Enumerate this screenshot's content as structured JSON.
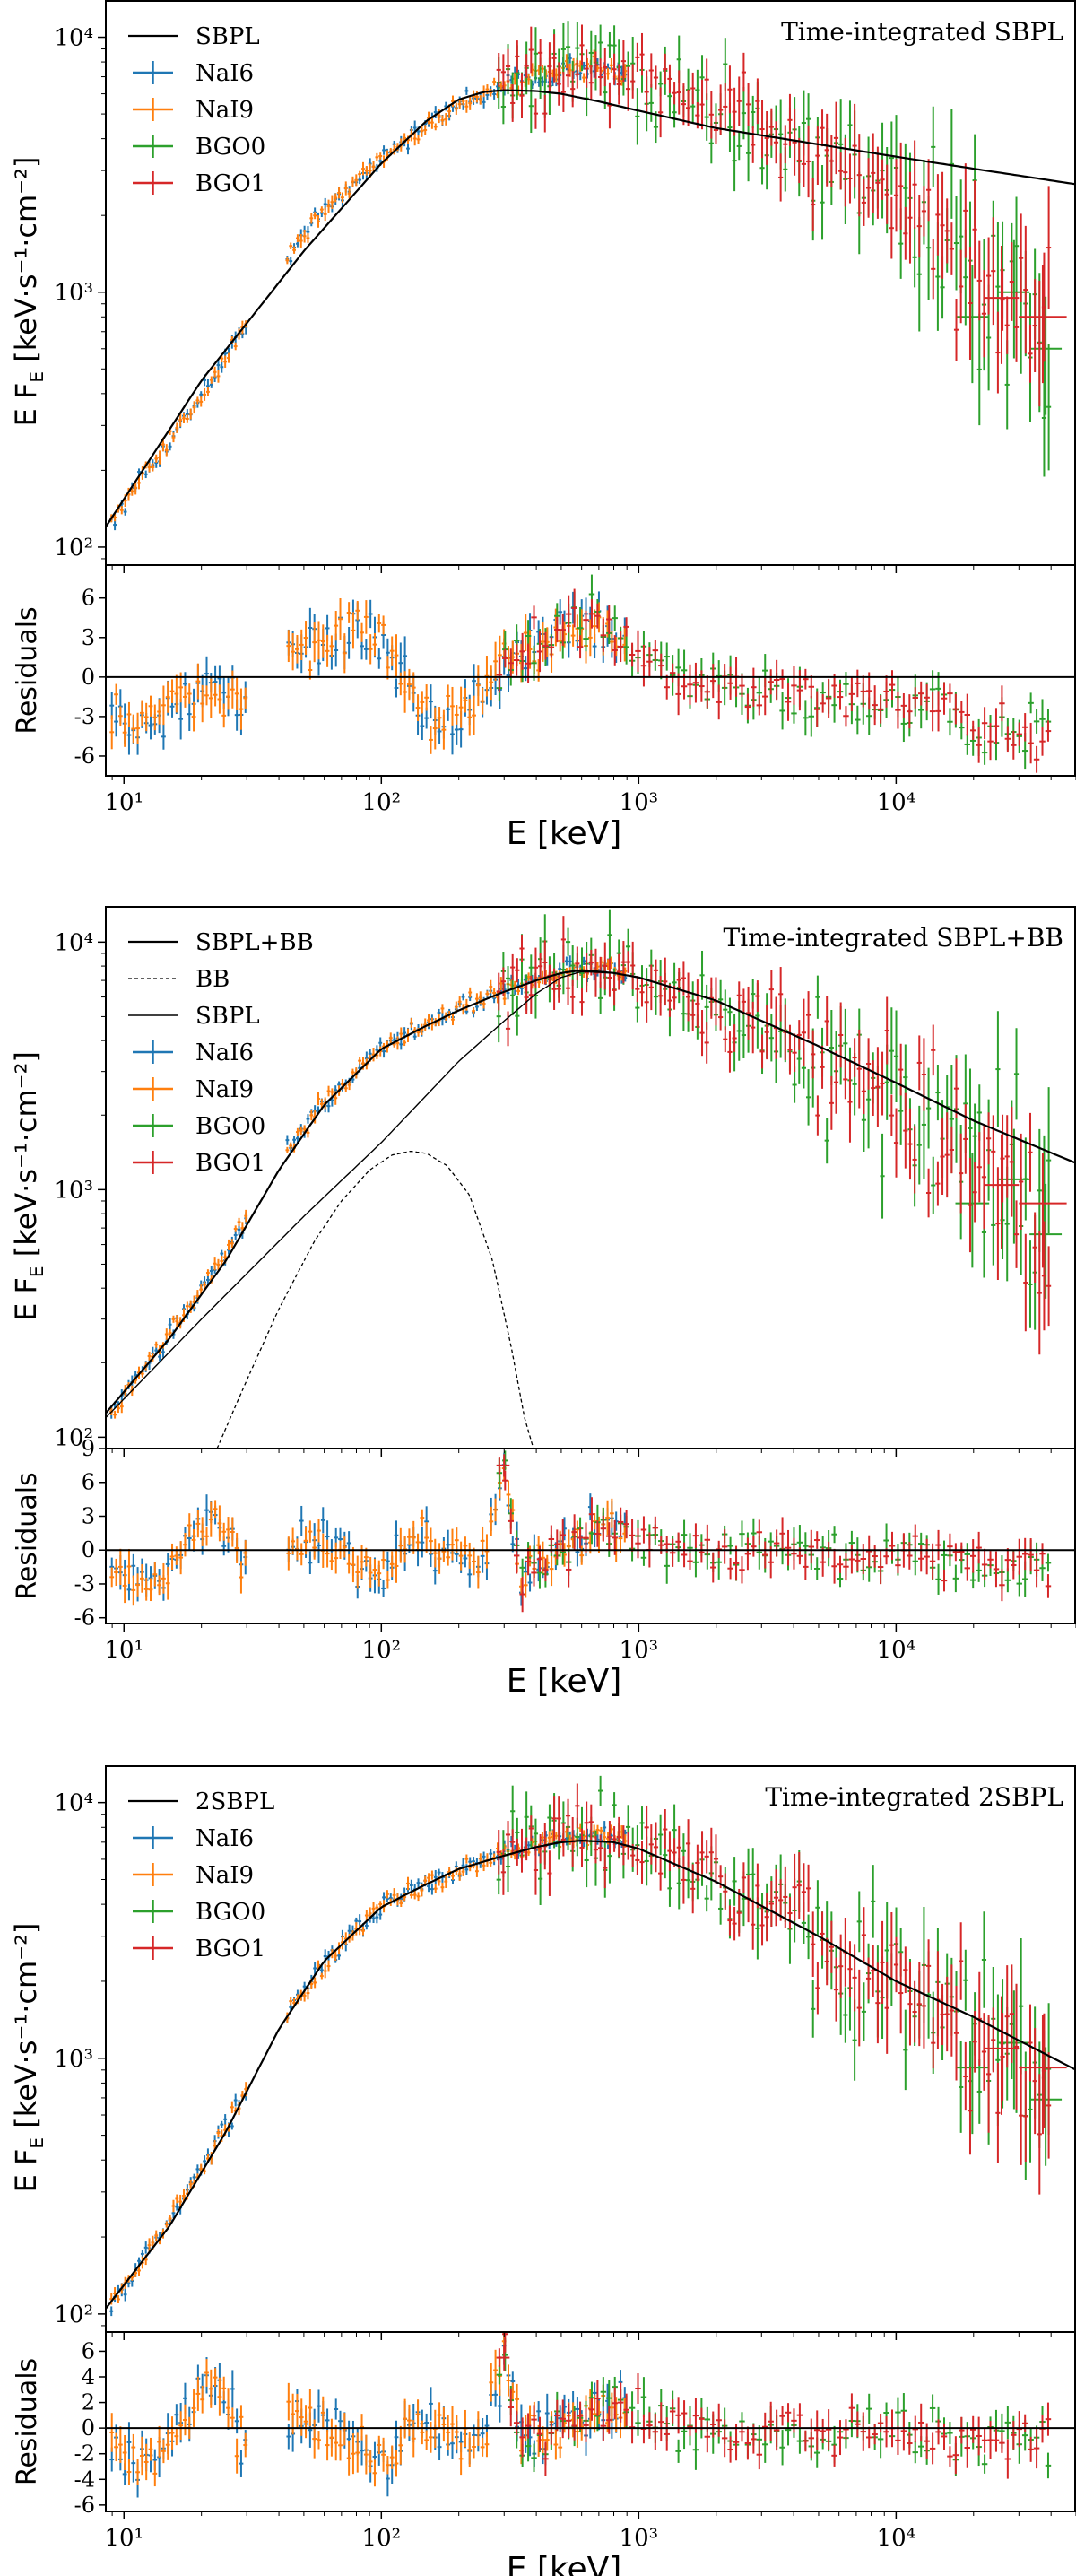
{
  "colors": {
    "NaI6": "#1f77b4",
    "NaI9": "#ff7f0e",
    "BGO0": "#2ca02c",
    "BGO1": "#d62728",
    "model": "#000000"
  },
  "chart_data": [
    {
      "type": "line",
      "title": "Time-integrated SBPL",
      "xlabel": "E [keV]",
      "ylabel_main": "E F",
      "ylabel_sub": "E",
      "ylabel_unit": "[keV·s⁻¹·cm⁻²]",
      "residual_label": "Residuals",
      "x_scale": "log",
      "y_scale": "log",
      "xlim": [
        8.5,
        50000
      ],
      "ylim": [
        85,
        14000
      ],
      "res_ylim": [
        -7.5,
        8.5
      ],
      "x_tick_labels": [
        "10¹",
        "10²",
        "10³",
        "10⁴"
      ],
      "y_tick_labels": [
        "10²",
        "10³",
        "10⁴"
      ],
      "res_tick_labels": [
        "6",
        "3",
        "0",
        "-3",
        "-6"
      ],
      "legend": [
        "SBPL",
        "NaI6",
        "NaI9",
        "BGO0",
        "BGO1"
      ],
      "legend_location": "top-left",
      "models": [
        {
          "name": "SBPL",
          "style": "solid",
          "width": 2.2,
          "x": [
            8.5,
            20,
            50,
            100,
            150,
            200,
            250,
            300,
            400,
            500,
            700,
            1000,
            2000,
            5000,
            10000,
            20000,
            50000
          ],
          "y": [
            120,
            450,
            1450,
            3200,
            4700,
            5700,
            6100,
            6200,
            6150,
            6000,
            5600,
            5150,
            4400,
            3800,
            3400,
            3050,
            2650
          ]
        }
      ],
      "data_spectrum": {
        "x": [
          9,
          15,
          25,
          40,
          60,
          100,
          150,
          200,
          300,
          400,
          500,
          700,
          900,
          1500,
          3000,
          7000,
          15000,
          25000,
          40000
        ],
        "y": [
          125,
          260,
          560,
          1250,
          2100,
          3400,
          4500,
          5500,
          6500,
          7000,
          7500,
          7600,
          7000,
          5800,
          4500,
          3000,
          1700,
          1000,
          800
        ]
      },
      "residuals": {
        "x": [
          9,
          11,
          14,
          18,
          22,
          27,
          30,
          45,
          60,
          80,
          100,
          130,
          160,
          200,
          250,
          300,
          400,
          500,
          650,
          800,
          1000,
          1500,
          2500,
          4000,
          7000,
          10000,
          15000,
          20000,
          30000,
          45000
        ],
        "y": [
          -2.5,
          -3.5,
          -3,
          -2,
          -1,
          -1.5,
          -2,
          2.2,
          3,
          3.6,
          2,
          -1,
          -3.5,
          -3,
          -1,
          0.8,
          2.5,
          3.6,
          4.5,
          3,
          1.5,
          -0.5,
          -1,
          -1.2,
          -1.8,
          -2,
          -2.5,
          -4,
          -4.5,
          -4.3
        ]
      }
    },
    {
      "type": "line",
      "title": "Time-integrated SBPL+BB",
      "xlabel": "E [keV]",
      "ylabel_main": "E F",
      "ylabel_sub": "E",
      "ylabel_unit": "[keV·s⁻¹·cm⁻²]",
      "residual_label": "Residuals",
      "x_scale": "log",
      "y_scale": "log",
      "xlim": [
        8.5,
        50000
      ],
      "ylim": [
        90,
        14000
      ],
      "res_ylim": [
        -6.5,
        9
      ],
      "x_tick_labels": [
        "10¹",
        "10²",
        "10³",
        "10⁴"
      ],
      "y_tick_labels": [
        "10²",
        "10³",
        "10⁴"
      ],
      "res_tick_labels": [
        "9",
        "6",
        "3",
        "0",
        "-3",
        "-6"
      ],
      "legend": [
        "SBPL+BB",
        "BB",
        "SBPL",
        "NaI6",
        "NaI9",
        "BGO0",
        "BGO1"
      ],
      "legend_location": "top-left",
      "models": [
        {
          "name": "SBPL+BB",
          "style": "solid",
          "width": 2.2,
          "x": [
            8.5,
            15,
            25,
            40,
            60,
            100,
            150,
            200,
            300,
            400,
            500,
            600,
            800,
            1000,
            2000,
            5000,
            10000,
            20000,
            50000
          ],
          "y": [
            125,
            250,
            520,
            1200,
            2200,
            3700,
            4600,
            5300,
            6300,
            7000,
            7500,
            7700,
            7500,
            7200,
            5800,
            3800,
            2700,
            1900,
            1280
          ]
        },
        {
          "name": "BB",
          "style": "dashed",
          "width": 1.3,
          "x": [
            23,
            30,
            40,
            55,
            70,
            90,
            110,
            130,
            150,
            180,
            220,
            270,
            320,
            360,
            390
          ],
          "y": [
            90,
            170,
            330,
            620,
            900,
            1200,
            1380,
            1430,
            1400,
            1250,
            950,
            520,
            230,
            120,
            90
          ]
        },
        {
          "name": "SBPL",
          "style": "solid",
          "width": 1.4,
          "x": [
            8.5,
            20,
            50,
            100,
            200,
            300,
            400,
            500,
            600,
            800,
            1000
          ],
          "y": [
            120,
            300,
            780,
            1550,
            3300,
            4800,
            6200,
            7200,
            7600,
            7500,
            7200
          ]
        }
      ],
      "data_spectrum": {
        "x": [
          9,
          15,
          25,
          40,
          60,
          100,
          150,
          200,
          300,
          400,
          500,
          700,
          900,
          1500,
          3000,
          7000,
          15000,
          25000,
          40000
        ],
        "y": [
          125,
          260,
          560,
          1300,
          2300,
          3700,
          4700,
          5400,
          6400,
          7100,
          7600,
          7900,
          7300,
          6000,
          4300,
          2900,
          1700,
          1000,
          800
        ]
      },
      "residuals": {
        "x": [
          9,
          11,
          14,
          18,
          21,
          25,
          28,
          45,
          60,
          80,
          100,
          130,
          160,
          200,
          250,
          300,
          350,
          400,
          500,
          650,
          800,
          1000,
          1500,
          2500,
          4000,
          7000,
          10000,
          15000,
          20000,
          30000,
          45000
        ],
        "y": [
          -2,
          -3,
          -2.5,
          1,
          3.5,
          2,
          -1,
          0.5,
          1,
          -1.5,
          -2,
          0.8,
          0.5,
          -0.5,
          -1,
          7.5,
          -3.5,
          -1,
          0,
          1.5,
          2,
          1,
          0.3,
          -0.3,
          0,
          -0.5,
          0,
          -0.5,
          -1.5,
          -1,
          -1.2
        ]
      }
    },
    {
      "type": "line",
      "title": "Time-integrated 2SBPL",
      "xlabel": "E [keV]",
      "ylabel_main": "E F",
      "ylabel_sub": "E",
      "ylabel_unit": "[keV·s⁻¹·cm⁻²]",
      "residual_label": "Residuals",
      "x_scale": "log",
      "y_scale": "log",
      "xlim": [
        8.5,
        50000
      ],
      "ylim": [
        85,
        14000
      ],
      "res_ylim": [
        -6.5,
        7.5
      ],
      "x_tick_labels": [
        "10¹",
        "10²",
        "10³",
        "10⁴"
      ],
      "y_tick_labels": [
        "10²",
        "10³",
        "10⁴"
      ],
      "res_tick_labels": [
        "6",
        "4",
        "2",
        "0",
        "-2",
        "-4",
        "-6"
      ],
      "legend": [
        "2SBPL",
        "NaI6",
        "NaI9",
        "BGO0",
        "BGO1"
      ],
      "legend_location": "top-left",
      "models": [
        {
          "name": "2SBPL",
          "style": "solid",
          "width": 2.2,
          "x": [
            8.5,
            15,
            25,
            40,
            60,
            100,
            150,
            200,
            300,
            400,
            500,
            600,
            800,
            1000,
            2000,
            5000,
            10000,
            20000,
            50000
          ],
          "y": [
            105,
            220,
            520,
            1300,
            2400,
            3900,
            4800,
            5500,
            6200,
            6700,
            7000,
            7100,
            7000,
            6600,
            4900,
            3000,
            2000,
            1450,
            900
          ]
        }
      ],
      "data_spectrum": {
        "x": [
          9,
          15,
          25,
          40,
          60,
          100,
          150,
          200,
          300,
          400,
          500,
          700,
          900,
          1500,
          3000,
          7000,
          15000,
          25000,
          40000
        ],
        "y": [
          110,
          230,
          540,
          1300,
          2400,
          3900,
          4800,
          5500,
          6300,
          6800,
          7300,
          7600,
          7000,
          5600,
          3800,
          2400,
          1500,
          1000,
          800
        ]
      },
      "residuals": {
        "x": [
          9,
          11,
          14,
          18,
          21,
          25,
          28,
          45,
          60,
          80,
          100,
          130,
          160,
          200,
          250,
          300,
          350,
          400,
          500,
          650,
          800,
          1000,
          1500,
          2500,
          4000,
          7000,
          10000,
          15000,
          20000,
          30000,
          45000
        ],
        "y": [
          -1,
          -2.5,
          -2,
          1.5,
          3.5,
          2,
          -0.5,
          0.5,
          0.5,
          -1.5,
          -2.5,
          0.5,
          0.3,
          -0.5,
          -0.5,
          5.5,
          -1.5,
          -0.5,
          0.5,
          1,
          2,
          1,
          0,
          -0.3,
          0,
          -0.5,
          0,
          -0.3,
          -1,
          -0.5,
          -1
        ]
      }
    }
  ]
}
